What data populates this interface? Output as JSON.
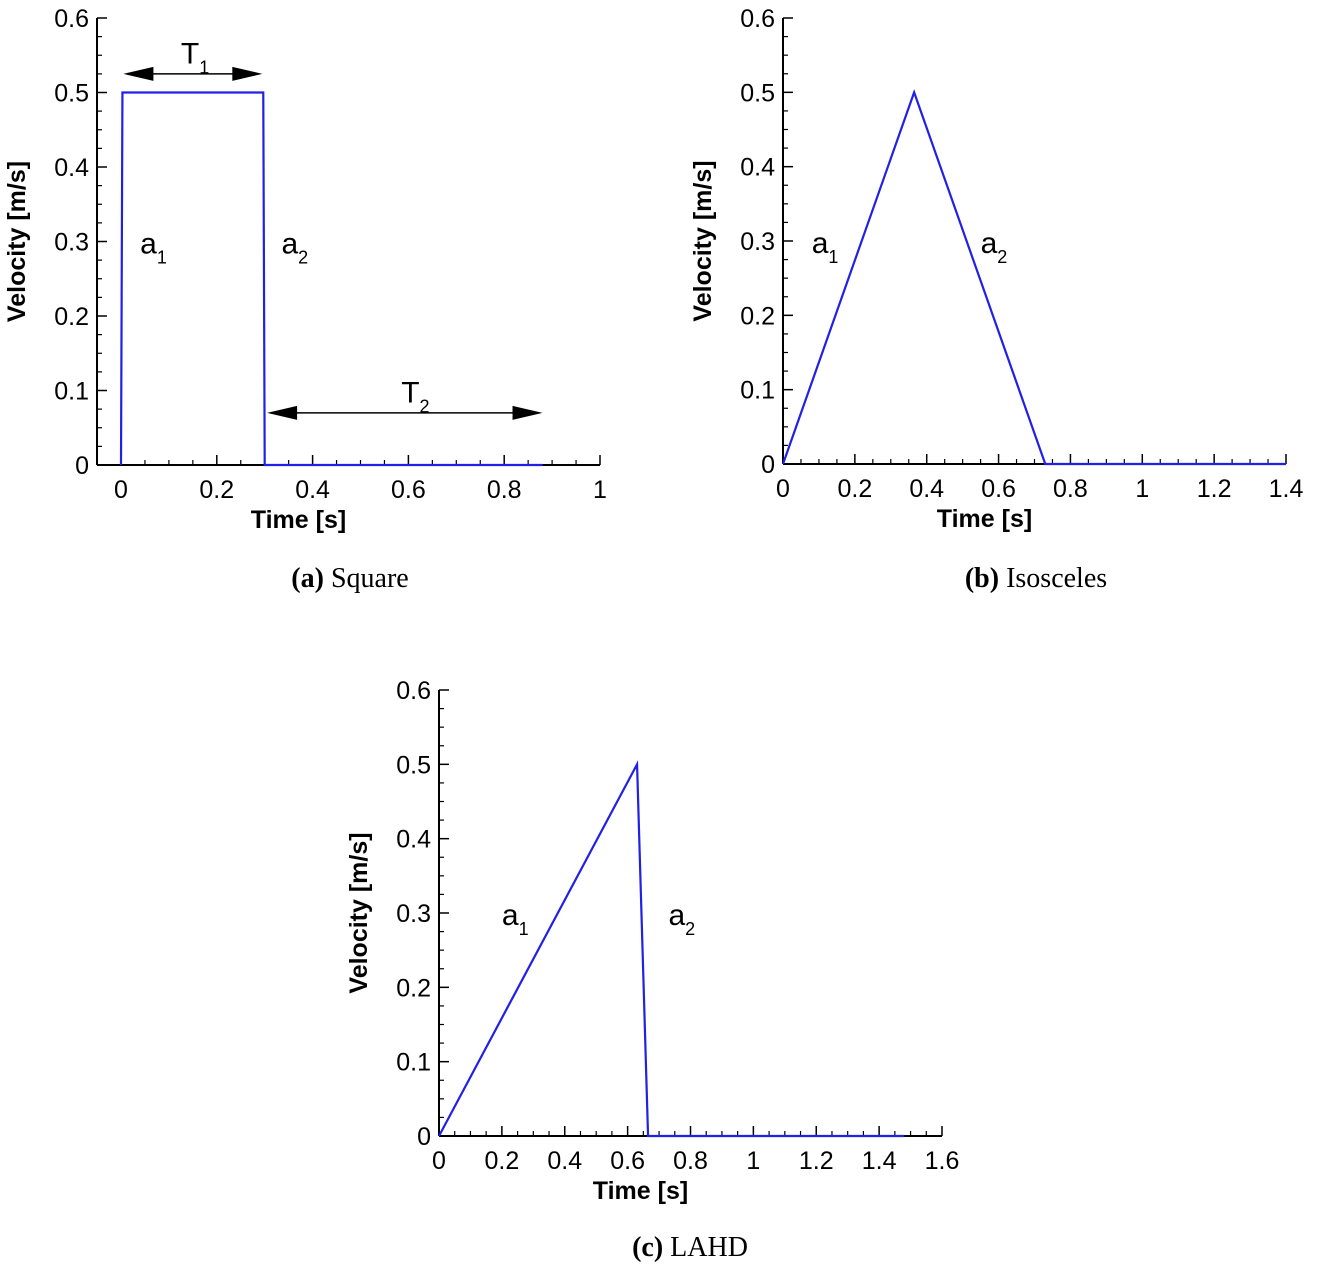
{
  "chart_data": [
    {
      "type": "line",
      "caption_tag": "(a)",
      "caption_text": "Square",
      "xlabel": "Time [s]",
      "ylabel": "Velocity [m/s]",
      "xlim": [
        0,
        1
      ],
      "ylim": [
        0,
        0.6
      ],
      "xticks": [
        "0",
        "0.2",
        "0.4",
        "0.6",
        "0.8",
        "1"
      ],
      "xtick_values": [
        0,
        0.2,
        0.4,
        0.6,
        0.8,
        1
      ],
      "yticks": [
        "0",
        "0.1",
        "0.2",
        "0.3",
        "0.4",
        "0.5",
        "0.6"
      ],
      "ytick_values": [
        0,
        0.1,
        0.2,
        0.3,
        0.4,
        0.5,
        0.6
      ],
      "series": [
        {
          "x": [
            0,
            0.003,
            0.297,
            0.3,
            0.88
          ],
          "y": [
            0,
            0.5,
            0.5,
            0,
            0
          ]
        }
      ],
      "annotations": [
        {
          "base": "a",
          "sub": "1",
          "x": 0.04,
          "y": 0.3
        },
        {
          "base": "a",
          "sub": "2",
          "x": 0.335,
          "y": 0.3
        },
        {
          "base": "T",
          "sub": "1",
          "x": 0.125,
          "y": 0.555
        },
        {
          "base": "T",
          "sub": "2",
          "x": 0.585,
          "y": 0.1
        }
      ],
      "arrows": [
        {
          "x1": 0.005,
          "x2": 0.295,
          "y": 0.525
        },
        {
          "x1": 0.305,
          "x2": 0.88,
          "y": 0.07
        }
      ],
      "line_color": "#2020e8"
    },
    {
      "type": "line",
      "caption_tag": "(b)",
      "caption_text": "Isosceles",
      "xlabel": "Time [s]",
      "ylabel": "Velocity [m/s]",
      "xlim": [
        0,
        1.4
      ],
      "ylim": [
        0,
        0.6
      ],
      "xticks": [
        "0",
        "0.2",
        "0.4",
        "0.6",
        "0.8",
        "1",
        "1.2",
        "1.4"
      ],
      "xtick_values": [
        0,
        0.2,
        0.4,
        0.6,
        0.8,
        1,
        1.2,
        1.4
      ],
      "yticks": [
        "0",
        "0.1",
        "0.2",
        "0.3",
        "0.4",
        "0.5",
        "0.6"
      ],
      "ytick_values": [
        0,
        0.1,
        0.2,
        0.3,
        0.4,
        0.5,
        0.6
      ],
      "series": [
        {
          "x": [
            0,
            0.365,
            0.73,
            1.4
          ],
          "y": [
            0,
            0.5,
            0,
            0
          ]
        }
      ],
      "annotations": [
        {
          "base": "a",
          "sub": "1",
          "x": 0.08,
          "y": 0.3
        },
        {
          "base": "a",
          "sub": "2",
          "x": 0.55,
          "y": 0.3
        }
      ],
      "arrows": [],
      "line_color": "#2020e8"
    },
    {
      "type": "line",
      "caption_tag": "(c)",
      "caption_text": "LAHD",
      "xlabel": "Time [s]",
      "ylabel": "Velocity [m/s]",
      "xlim": [
        0,
        1.6
      ],
      "ylim": [
        0,
        0.6
      ],
      "xticks": [
        "0",
        "0.2",
        "0.4",
        "0.6",
        "0.8",
        "1",
        "1.2",
        "1.4",
        "1.6"
      ],
      "xtick_values": [
        0,
        0.2,
        0.4,
        0.6,
        0.8,
        1,
        1.2,
        1.4,
        1.6
      ],
      "yticks": [
        "0",
        "0.1",
        "0.2",
        "0.3",
        "0.4",
        "0.5",
        "0.6"
      ],
      "ytick_values": [
        0,
        0.1,
        0.2,
        0.3,
        0.4,
        0.5,
        0.6
      ],
      "series": [
        {
          "x": [
            0,
            0.63,
            0.665,
            1.48
          ],
          "y": [
            0,
            0.5,
            0,
            0
          ]
        }
      ],
      "annotations": [
        {
          "base": "a",
          "sub": "1",
          "x": 0.2,
          "y": 0.3
        },
        {
          "base": "a",
          "sub": "2",
          "x": 0.73,
          "y": 0.3
        }
      ],
      "arrows": [],
      "line_color": "#2020e8"
    }
  ]
}
